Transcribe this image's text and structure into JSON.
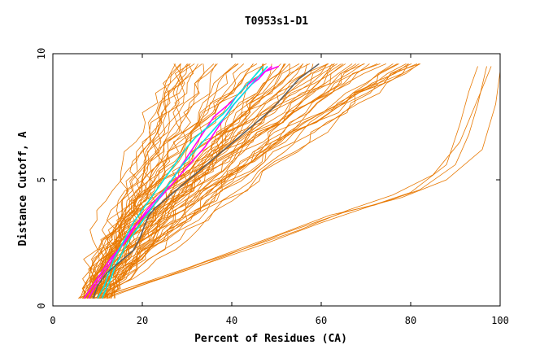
{
  "chart_data": {
    "type": "line",
    "title": "T0953s1-D1",
    "xlabel": "Percent of Residues (CA)",
    "ylabel": "Distance Cutoff, A",
    "xlim": [
      0,
      100
    ],
    "ylim": [
      0,
      10
    ],
    "x_ticks": [
      "0",
      "20",
      "40",
      "60",
      "80",
      "100"
    ],
    "y_ticks": [
      "0",
      "5",
      "10"
    ],
    "grid": false,
    "legend": "none",
    "colors": {
      "background_series": "#e87800",
      "magenta": "#ff00ff",
      "cyan": "#00e5e5",
      "gray": "#606060",
      "axis": "#000000"
    },
    "series": [
      {
        "color": "magenta",
        "x": [
          8,
          9.5,
          11,
          12.5,
          14,
          16,
          17.5,
          19,
          21,
          23,
          25,
          27,
          28.5,
          30,
          31.5,
          33,
          34.5,
          36,
          38,
          40,
          41.5,
          43,
          44.5,
          46,
          47.5,
          49,
          50.5
        ],
        "y": [
          0.3,
          0.8,
          1.2,
          1.6,
          2.1,
          2.5,
          2.9,
          3.3,
          3.8,
          4.2,
          4.6,
          5.1,
          5.5,
          5.9,
          6.3,
          6.7,
          7.1,
          7.5,
          7.8,
          8.1,
          8.4,
          8.7,
          8.9,
          9.1,
          9.3,
          9.4,
          9.5
        ]
      },
      {
        "color": "magenta",
        "x": [
          7,
          8.5,
          10,
          11.5,
          13,
          15,
          16.5,
          18,
          20,
          22,
          24,
          26,
          28,
          30,
          32,
          34,
          35.5,
          37,
          38.5,
          40,
          41.5,
          43,
          44.5,
          46,
          47.5,
          49
        ],
        "y": [
          0.3,
          0.7,
          1.1,
          1.5,
          1.9,
          2.3,
          2.7,
          3.1,
          3.5,
          3.9,
          4.3,
          4.7,
          5.1,
          5.5,
          5.9,
          6.3,
          6.7,
          7.1,
          7.5,
          7.9,
          8.2,
          8.5,
          8.8,
          9.0,
          9.3,
          9.5
        ]
      },
      {
        "color": "cyan",
        "x": [
          11,
          12,
          13,
          14,
          15.5,
          17,
          19,
          21,
          23,
          25,
          27,
          29,
          31,
          33,
          35,
          37,
          39,
          40.5,
          42,
          43.5,
          45,
          46.5,
          48
        ],
        "y": [
          0.3,
          0.7,
          1.1,
          1.6,
          2.1,
          2.6,
          3.1,
          3.6,
          4.1,
          4.6,
          5.1,
          5.6,
          6.0,
          6.4,
          6.8,
          7.2,
          7.6,
          8.0,
          8.3,
          8.6,
          8.9,
          9.2,
          9.5
        ]
      },
      {
        "color": "cyan",
        "x": [
          10,
          11.5,
          12.5,
          13.5,
          15,
          16.5,
          18,
          20,
          22,
          24,
          26,
          28,
          30,
          32,
          34,
          36,
          38,
          39.5,
          41,
          42.5,
          44,
          45.5,
          47
        ],
        "y": [
          0.3,
          0.8,
          1.3,
          1.8,
          2.3,
          2.8,
          3.3,
          3.8,
          4.3,
          4.8,
          5.3,
          5.8,
          6.3,
          6.7,
          7.0,
          7.3,
          7.6,
          7.9,
          8.3,
          8.6,
          8.9,
          9.2,
          9.5
        ]
      },
      {
        "color": "gray",
        "x": [
          9,
          10,
          12,
          14,
          16,
          18,
          19.5,
          20.5,
          21.5,
          23,
          25,
          27,
          29,
          31,
          33,
          35,
          37,
          39,
          41,
          43,
          45,
          47,
          49,
          50.5,
          52,
          53.5,
          55,
          56.5,
          58,
          59.5
        ],
        "y": [
          0.3,
          0.8,
          1.3,
          1.6,
          1.9,
          2.2,
          2.7,
          3.2,
          3.6,
          3.9,
          4.2,
          4.5,
          4.8,
          5.1,
          5.4,
          5.7,
          6.0,
          6.3,
          6.6,
          6.9,
          7.2,
          7.5,
          7.8,
          8.1,
          8.4,
          8.7,
          9.0,
          9.2,
          9.4,
          9.6
        ]
      }
    ]
  }
}
